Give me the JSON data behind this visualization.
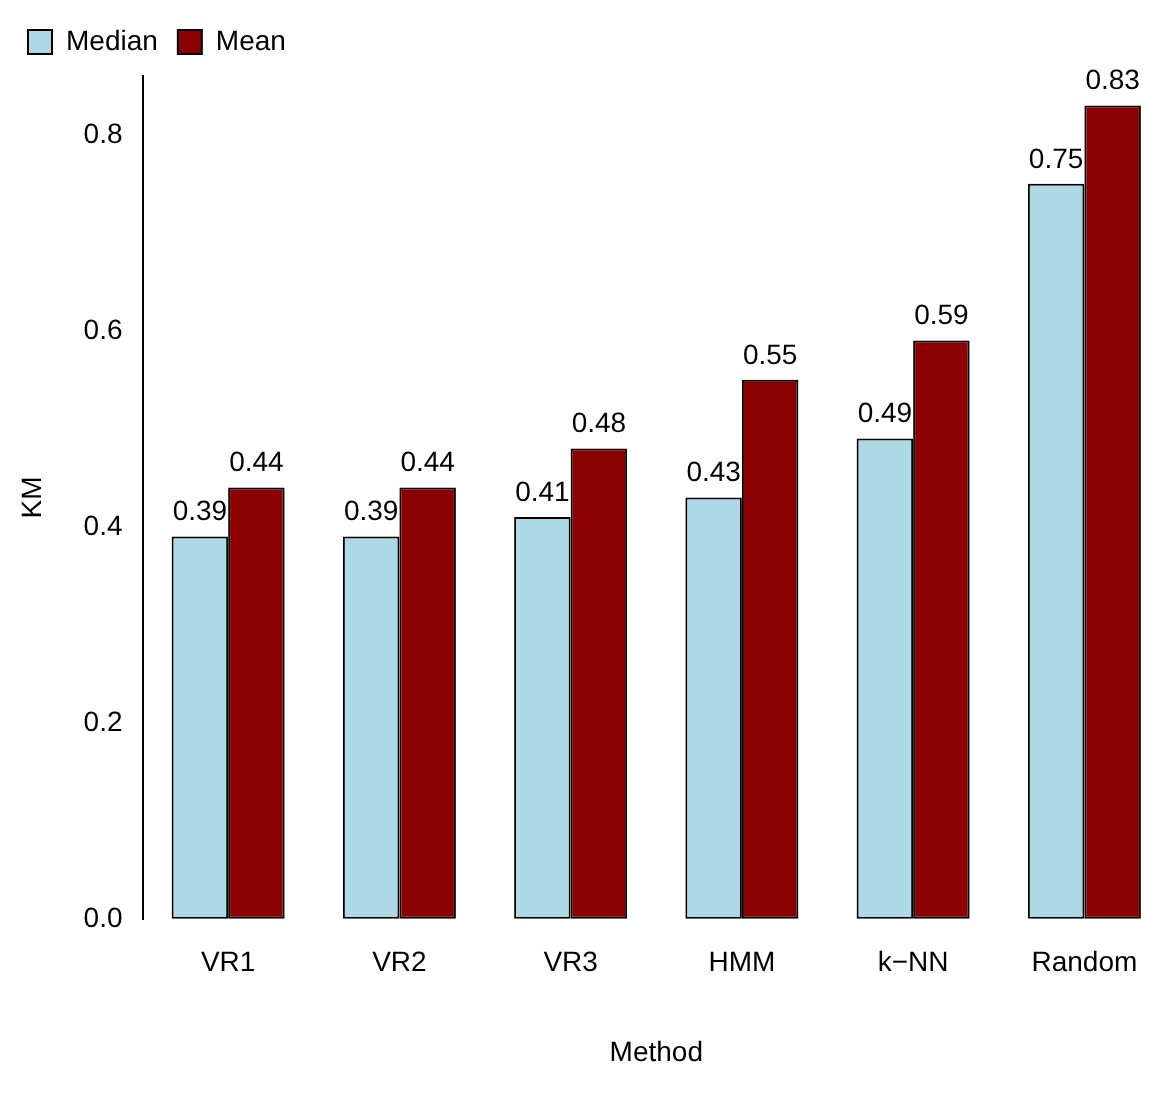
{
  "chart_data": {
    "type": "bar",
    "xlabel": "Method",
    "ylabel": "KM",
    "categories": [
      "VR1",
      "VR2",
      "VR3",
      "HMM",
      "k−NN",
      "Random"
    ],
    "series": [
      {
        "name": "Median",
        "color": "#add8e6",
        "values": [
          0.39,
          0.39,
          0.41,
          0.43,
          0.49,
          0.75
        ]
      },
      {
        "name": "Mean",
        "color": "#8b0000",
        "values": [
          0.44,
          0.44,
          0.48,
          0.55,
          0.59,
          0.83
        ]
      }
    ],
    "ylim": [
      0,
      0.86
    ],
    "yticks": [
      {
        "value": 0,
        "label": "0.0"
      },
      0.2,
      0.4,
      0.6,
      0.8
    ],
    "grid": false,
    "legend": "top left",
    "data_labels": true
  }
}
